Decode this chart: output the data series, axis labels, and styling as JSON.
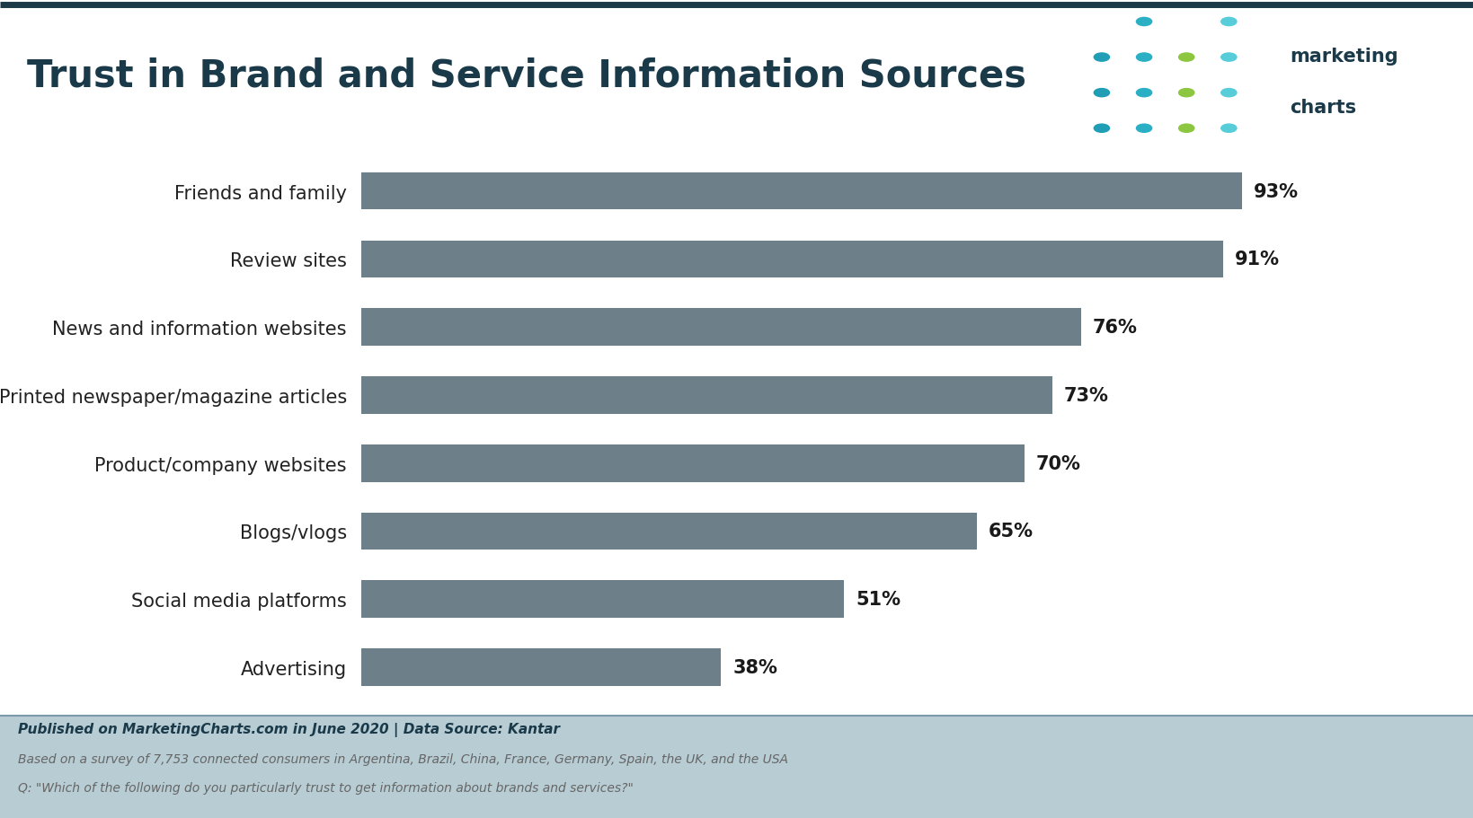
{
  "title": "Trust in Brand and Service Information Sources",
  "categories": [
    "Friends and family",
    "Review sites",
    "News and information websites",
    "Printed newspaper/magazine articles",
    "Product/company websites",
    "Blogs/vlogs",
    "Social media platforms",
    "Advertising"
  ],
  "values": [
    93,
    91,
    76,
    73,
    70,
    65,
    51,
    38
  ],
  "bar_color": "#6d7f88",
  "title_color": "#1a3a4a",
  "background_color": "#ffffff",
  "footer_bg": "#b8ccd4",
  "footer_text1": "Published on MarketingCharts.com in June 2020 | Data Source: Kantar",
  "footer_text2": "Based on a survey of 7,753 connected consumers in Argentina, Brazil, China, France, Germany, Spain, the UK, and the USA",
  "footer_text3": "Q: \"Which of the following do you particularly trust to get information about brands and services?\"",
  "logo_text_color": "#1a3a4a",
  "value_label_color": "#1a1a1a",
  "xlim": [
    0,
    105
  ],
  "title_fontsize": 30,
  "label_fontsize": 15,
  "value_fontsize": 15,
  "dot_grid": [
    [
      null,
      "#2bafc5",
      null,
      "#56cdd9"
    ],
    [
      "#1f9eb5",
      "#2bafc5",
      "#8dc63f",
      "#56cdd9"
    ],
    [
      "#1f9eb5",
      "#2bafc5",
      "#8dc63f",
      "#56cdd9"
    ],
    [
      "#1f9eb5",
      "#2bafc5",
      "#8dc63f",
      "#56cdd9"
    ]
  ],
  "top_line_color": "#1a3a4a",
  "footer_line_color": "#1a3a4a"
}
